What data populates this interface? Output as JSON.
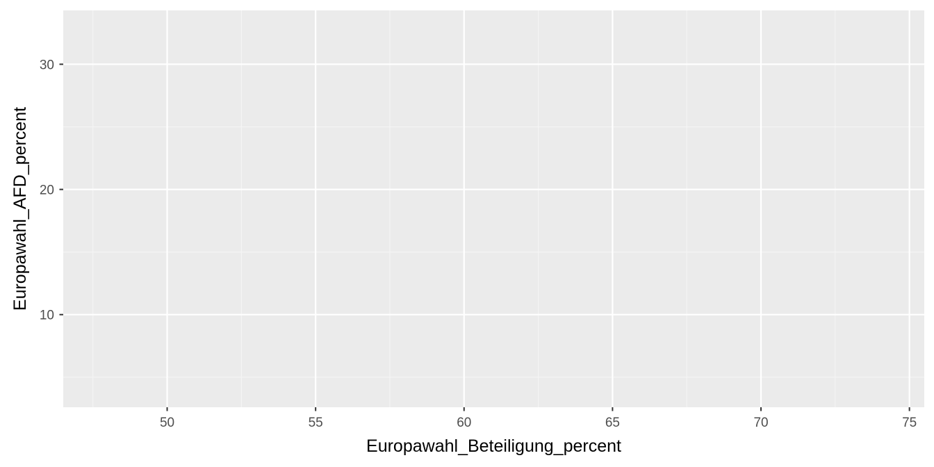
{
  "chart_data": {
    "type": "scatter",
    "title": "",
    "xlabel": "Europawahl_Beteiligung_percent",
    "ylabel": "Europawahl_AFD_percent",
    "xlim": [
      46.5,
      75.5
    ],
    "ylim": [
      2.6,
      34.3
    ],
    "x_ticks": [
      50,
      55,
      60,
      65,
      70,
      75
    ],
    "y_ticks": [
      10,
      20,
      30
    ],
    "x_tick_labels": [
      "50",
      "55",
      "60",
      "65",
      "70",
      "75"
    ],
    "y_tick_labels": [
      "10",
      "20",
      "30"
    ],
    "grid": true,
    "points": [],
    "colors": {
      "panel_background": "#ebebeb",
      "grid_major": "#ffffff",
      "grid_minor": "#f5f5f5",
      "tick_text": "#4d4d4d",
      "tick_mark": "#333333",
      "axis_title": "#000000"
    }
  }
}
